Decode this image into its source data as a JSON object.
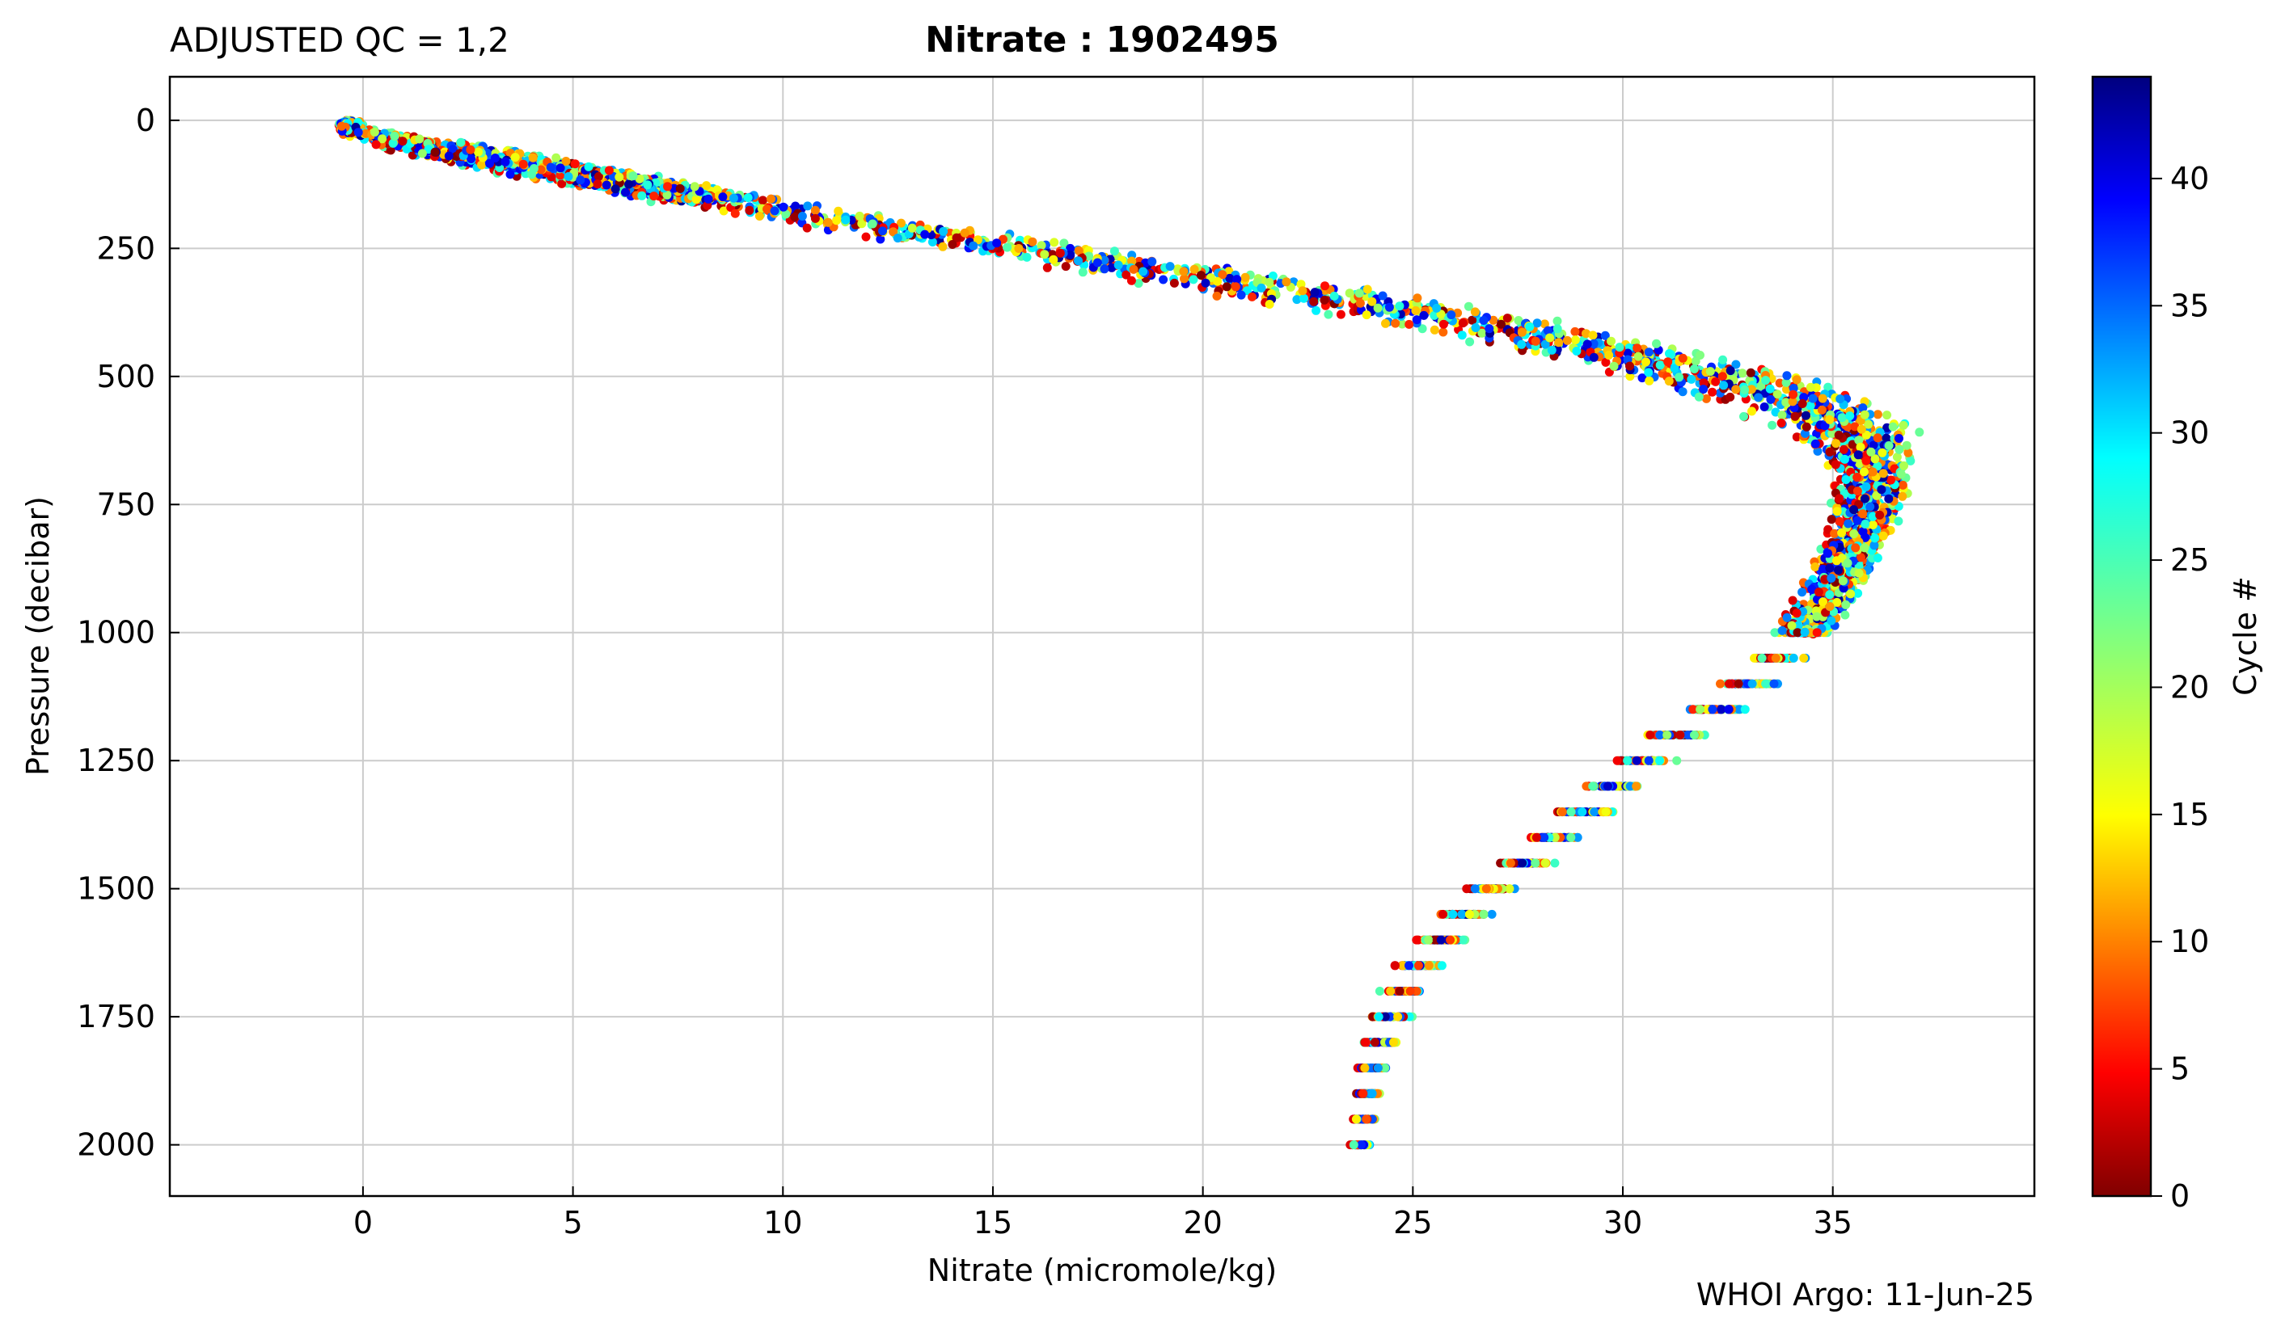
{
  "chart_data": {
    "type": "scatter",
    "title_left": "ADJUSTED QC = 1,2",
    "title_center": "Nitrate : 1902495",
    "xlabel": "Nitrate  (micromole/kg)",
    "ylabel": "Pressure  (decibar)",
    "footer": "WHOI Argo: 11-Jun-25",
    "xlim": [
      -4.6,
      39.8
    ],
    "ylim": [
      2100,
      -85
    ],
    "y_inverted": true,
    "grid": true,
    "x_ticks": [
      0,
      5,
      10,
      15,
      20,
      25,
      30,
      35
    ],
    "y_ticks": [
      0,
      250,
      500,
      750,
      1000,
      1250,
      1500,
      1750,
      2000
    ],
    "colorbar": {
      "label": "Cycle #",
      "colormap": "jet",
      "range": [
        0,
        44
      ],
      "ticks": [
        0,
        5,
        10,
        15,
        20,
        25,
        30,
        35,
        40
      ],
      "placement": "right"
    },
    "profile_envelope": {
      "pressure": [
        20,
        60,
        100,
        150,
        200,
        250,
        300,
        350,
        400,
        450,
        500,
        550,
        600,
        650,
        700,
        750,
        800,
        850,
        900,
        950,
        1000,
        1050,
        1100,
        1150,
        1200,
        1250,
        1300,
        1350,
        1400,
        1450,
        1500,
        1550,
        1600,
        1650,
        1700,
        1750,
        1800,
        1850,
        1900,
        1950,
        2000
      ],
      "nitrate_center": [
        -0.3,
        2.0,
        4.5,
        8.0,
        11.5,
        15.5,
        19.5,
        23.0,
        26.5,
        29.5,
        32.0,
        34.0,
        35.2,
        35.7,
        35.9,
        35.8,
        35.6,
        35.3,
        35.0,
        34.6,
        34.2,
        33.6,
        32.9,
        32.1,
        31.2,
        30.4,
        29.7,
        29.0,
        28.3,
        27.6,
        26.8,
        26.2,
        25.6,
        25.1,
        24.7,
        24.4,
        24.2,
        24.0,
        23.9,
        23.8,
        23.7
      ],
      "spread": [
        0.4,
        2.0,
        2.0,
        2.0,
        2.2,
        2.5,
        2.8,
        3.0,
        3.0,
        2.8,
        2.8,
        2.5,
        2.2,
        1.6,
        1.2,
        1.2,
        1.0,
        1.0,
        1.0,
        0.9,
        1.0,
        1.1,
        1.2,
        1.2,
        1.2,
        1.2,
        1.2,
        1.2,
        1.1,
        1.1,
        1.0,
        1.0,
        0.9,
        0.9,
        0.8,
        0.8,
        0.7,
        0.6,
        0.5,
        0.5,
        0.4
      ]
    },
    "num_cycles": 44,
    "cycle_colors": "jet colormap: dark red (0) → red → orange → yellow → green → cyan → blue → dark navy (44)"
  }
}
